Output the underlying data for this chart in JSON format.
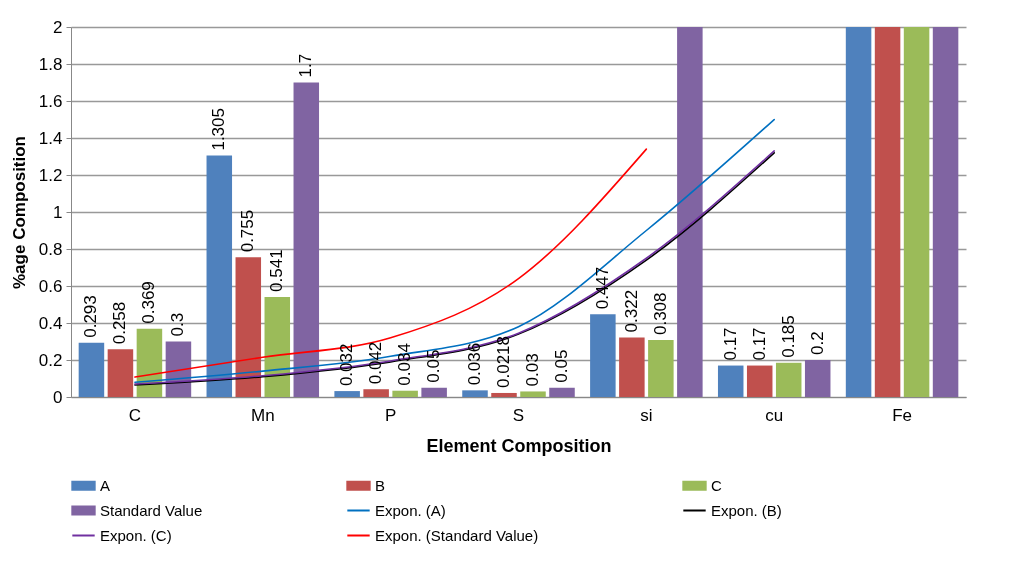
{
  "chart_data": {
    "type": "bar",
    "xlabel": "Element Composition",
    "ylabel": "%age Composition",
    "categories": [
      "C",
      "Mn",
      "P",
      "S",
      "si",
      "cu",
      "Fe"
    ],
    "ylim": [
      0,
      2
    ],
    "yticks": [
      0,
      0.2,
      0.4,
      0.6,
      0.8,
      1,
      1.2,
      1.4,
      1.6,
      1.8,
      2
    ],
    "grid": "y",
    "legend": "bottom",
    "series": [
      {
        "name": "A",
        "color": "#4f81bd",
        "values": [
          0.293,
          1.305,
          0.032,
          0.036,
          0.447,
          0.17,
          2
        ],
        "value_labels": [
          "0.293",
          "1.305",
          "0.032",
          "0.036",
          "0.447",
          "0.17",
          null
        ]
      },
      {
        "name": "B",
        "color": "#c0504d",
        "values": [
          0.258,
          0.755,
          0.042,
          0.0218,
          0.322,
          0.17,
          2
        ],
        "value_labels": [
          "0.258",
          "0.755",
          "0.042",
          "0.0218",
          "0.322",
          "0.17",
          null
        ]
      },
      {
        "name": "C",
        "color": "#9bbb59",
        "values": [
          0.369,
          0.541,
          0.034,
          0.03,
          0.308,
          0.185,
          2
        ],
        "value_labels": [
          "0.369",
          "0.541",
          "0.034",
          "0.03",
          "0.308",
          "0.185",
          null
        ]
      },
      {
        "name": "Standard Value",
        "color": "#8064a2",
        "values": [
          0.3,
          1.7,
          0.05,
          0.05,
          2,
          0.2,
          2
        ],
        "value_labels": [
          "0.3",
          "1.7",
          "0.05",
          "0.05",
          null,
          "0.2",
          null
        ]
      },
      {
        "name": "Expon. (A)",
        "type": "line",
        "color": "#0070c0",
        "values": [
          0.08,
          0.14,
          0.22,
          0.38,
          0.9,
          1.5,
          null
        ]
      },
      {
        "name": "Expon. (B)",
        "type": "line",
        "color": "#000000",
        "values": [
          0.065,
          0.11,
          0.19,
          0.34,
          0.74,
          1.32,
          null
        ]
      },
      {
        "name": "Expon. (C)",
        "type": "line",
        "color": "#7030a0",
        "values": [
          0.07,
          0.115,
          0.195,
          0.345,
          0.75,
          1.33,
          null
        ]
      },
      {
        "name": "Expon. (Standard Value)",
        "type": "line",
        "color": "#ff0000",
        "values": [
          0.108,
          0.215,
          0.32,
          0.64,
          1.34,
          null,
          null
        ]
      }
    ]
  }
}
